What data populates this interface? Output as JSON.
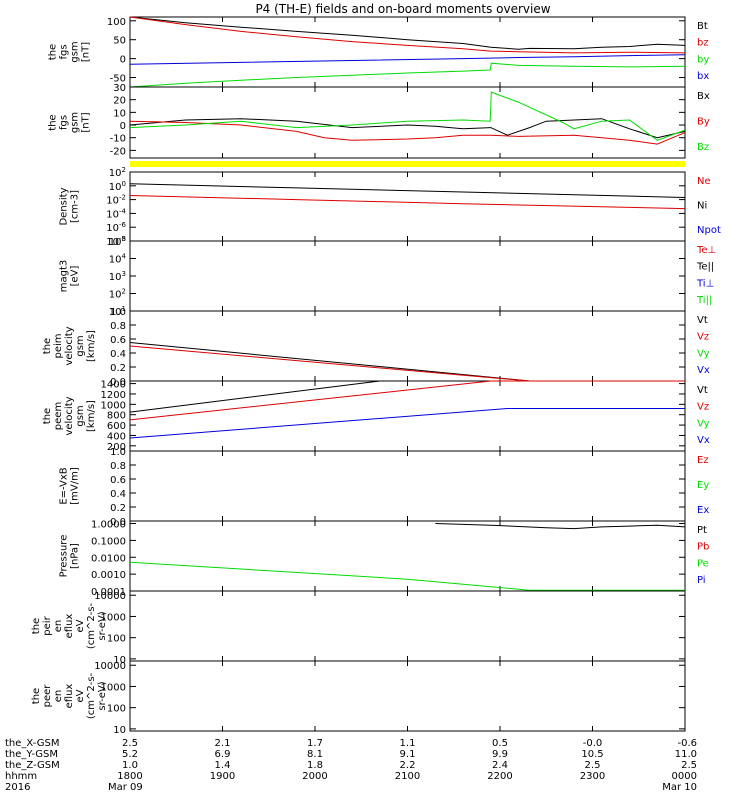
{
  "title": "P4 (TH-E) fields and on-board moments overview",
  "colors": {
    "black": "#000000",
    "red": "#dd0000",
    "green": "#00dd00",
    "blue": "#0000dd",
    "yellow": "#ffff00"
  },
  "chart_data": [
    {
      "type": "line",
      "id": "fgs-gsm",
      "ylabel": [
        "the",
        "fgs",
        "gsm",
        "[nT]"
      ],
      "ylim": [
        -75,
        110
      ],
      "yticks": [
        100,
        50,
        0,
        -50
      ],
      "legend": [
        {
          "label": "Bt",
          "color": "black"
        },
        {
          "label": "bz",
          "color": "red"
        },
        {
          "label": "by",
          "color": "green"
        },
        {
          "label": "bx",
          "color": "blue"
        }
      ],
      "series": [
        {
          "name": "Bt",
          "color": "black",
          "x": [
            0,
            0.1,
            0.2,
            0.3,
            0.4,
            0.5,
            0.6,
            0.65,
            0.7,
            0.72,
            0.8,
            0.85,
            0.9,
            0.95,
            1.0
          ],
          "y": [
            110,
            95,
            83,
            72,
            62,
            50,
            40,
            30,
            25,
            27,
            26,
            30,
            32,
            38,
            35
          ]
        },
        {
          "name": "bz",
          "color": "red",
          "x": [
            0,
            0.1,
            0.2,
            0.3,
            0.4,
            0.5,
            0.6,
            0.65,
            0.7,
            0.8,
            0.9,
            1.0
          ],
          "y": [
            110,
            90,
            72,
            58,
            45,
            35,
            26,
            20,
            18,
            15,
            17,
            15
          ]
        },
        {
          "name": "by",
          "color": "green",
          "x": [
            0,
            0.1,
            0.2,
            0.3,
            0.4,
            0.5,
            0.6,
            0.649,
            0.651,
            0.7,
            0.8,
            0.9,
            1.0
          ],
          "y": [
            -75,
            -65,
            -57,
            -50,
            -44,
            -38,
            -33,
            -30,
            -12,
            -18,
            -20,
            -22,
            -20
          ]
        },
        {
          "name": "bx",
          "color": "blue",
          "x": [
            0,
            0.2,
            0.4,
            0.6,
            0.7,
            0.8,
            0.9,
            1.0
          ],
          "y": [
            -15,
            -10,
            -5,
            0,
            3,
            5,
            8,
            10
          ]
        }
      ]
    },
    {
      "type": "line",
      "id": "fgs-gse-gsm",
      "ylabel": [
        "the",
        "fgs",
        "gsm",
        "[nT]"
      ],
      "ylim": [
        -26,
        30
      ],
      "yticks": [
        30,
        20,
        10,
        0,
        -10,
        -20
      ],
      "legend": [
        {
          "label": "Bx",
          "color": "black"
        },
        {
          "label": "By",
          "color": "red"
        },
        {
          "label": "Bz",
          "color": "green"
        }
      ],
      "series": [
        {
          "name": "Bx",
          "color": "black",
          "x": [
            0,
            0.1,
            0.2,
            0.3,
            0.4,
            0.5,
            0.55,
            0.6,
            0.65,
            0.68,
            0.72,
            0.75,
            0.8,
            0.85,
            0.9,
            0.95,
            1.0
          ],
          "y": [
            0,
            4,
            5,
            3,
            -2,
            0,
            -1,
            -3,
            -2,
            -8,
            -2,
            3,
            4,
            5,
            -3,
            -10,
            -5
          ]
        },
        {
          "name": "By",
          "color": "red",
          "x": [
            0,
            0.1,
            0.2,
            0.3,
            0.35,
            0.4,
            0.5,
            0.55,
            0.6,
            0.65,
            0.7,
            0.8,
            0.9,
            0.95,
            1.0
          ],
          "y": [
            3,
            2,
            0,
            -5,
            -10,
            -12,
            -11,
            -10,
            -8,
            -8,
            -9,
            -8,
            -12,
            -15,
            -6
          ]
        },
        {
          "name": "Bz",
          "color": "green",
          "x": [
            0,
            0.1,
            0.2,
            0.3,
            0.4,
            0.5,
            0.6,
            0.649,
            0.651,
            0.7,
            0.78,
            0.8,
            0.85,
            0.9,
            0.95,
            1.0
          ],
          "y": [
            -2,
            0,
            3,
            -2,
            0,
            3,
            4,
            3,
            26,
            18,
            2,
            -3,
            3,
            4,
            -12,
            -4
          ]
        }
      ]
    },
    {
      "type": "line",
      "id": "density",
      "log": true,
      "ylabel": [
        "Density",
        "[cm-3]"
      ],
      "ylim": [
        -8,
        2
      ],
      "yticks": [
        "10^2",
        "10^0",
        "10^-2",
        "10^-4",
        "10^-6",
        "10^-8"
      ],
      "legend": [
        {
          "label": "Ne",
          "color": "red"
        },
        {
          "label": "Ni",
          "color": "black"
        },
        {
          "label": "Npot",
          "color": "blue"
        }
      ],
      "series": [
        {
          "name": "Ni",
          "color": "black",
          "x": [
            0,
            0.3,
            0.6,
            1.0
          ],
          "y": [
            0.3,
            -0.3,
            -0.9,
            -1.7
          ]
        },
        {
          "name": "Ne",
          "color": "red",
          "x": [
            0,
            0.3,
            0.6,
            1.0
          ],
          "y": [
            -1.4,
            -2.0,
            -2.6,
            -3.3
          ]
        }
      ]
    },
    {
      "type": "line",
      "id": "temperature",
      "log": true,
      "ylabel": [
        "magt3",
        "[eV]"
      ],
      "ylim": [
        1,
        5
      ],
      "yticks": [
        "10^5",
        "10^4",
        "10^3",
        "10^2",
        "10^1"
      ],
      "legend": [
        {
          "label": "Te⊥",
          "color": "red"
        },
        {
          "label": "Te||",
          "color": "black"
        },
        {
          "label": "Ti⊥",
          "color": "blue"
        },
        {
          "label": "Ti||",
          "color": "green"
        }
      ],
      "series": []
    },
    {
      "type": "line",
      "id": "peim-velocity",
      "ylabel": [
        "the",
        "peim",
        "velocity",
        "gsm",
        "[km/s]"
      ],
      "ylim": [
        0,
        1.0
      ],
      "yticks": [
        1.0,
        0.8,
        0.6,
        0.4,
        0.2,
        0.0
      ],
      "legend": [
        {
          "label": "Vt",
          "color": "black"
        },
        {
          "label": "Vz",
          "color": "red"
        },
        {
          "label": "Vy",
          "color": "green"
        },
        {
          "label": "Vx",
          "color": "blue"
        }
      ],
      "series": [
        {
          "name": "Vt",
          "color": "black",
          "x": [
            0,
            0.72
          ],
          "y": [
            0.55,
            0.0
          ]
        },
        {
          "name": "Vz",
          "color": "red",
          "x": [
            0,
            0.72
          ],
          "y": [
            0.5,
            0.0
          ]
        }
      ]
    },
    {
      "type": "line",
      "id": "peem-velocity",
      "ylabel": [
        "the",
        "peem",
        "velocity",
        "gsm",
        "[km/s]"
      ],
      "ylim": [
        100,
        1450
      ],
      "yticks": [
        1400,
        1200,
        1000,
        800,
        600,
        400,
        200
      ],
      "legend": [
        {
          "label": "Vt",
          "color": "black"
        },
        {
          "label": "Vz",
          "color": "red"
        },
        {
          "label": "Vy",
          "color": "green"
        },
        {
          "label": "Vx",
          "color": "blue"
        }
      ],
      "series": [
        {
          "name": "Vt",
          "color": "black",
          "x": [
            0,
            0.45,
            0.8,
            1.0
          ],
          "y": [
            850,
            1450,
            1450,
            1450
          ]
        },
        {
          "name": "Vz",
          "color": "red",
          "x": [
            0,
            0.65,
            1.0
          ],
          "y": [
            700,
            1450,
            1450
          ]
        },
        {
          "name": "Vx",
          "color": "blue",
          "x": [
            0,
            0.68,
            1.0
          ],
          "y": [
            350,
            920,
            920
          ]
        }
      ]
    },
    {
      "type": "line",
      "id": "efield",
      "ylabel": [
        "E=-VxB",
        "[mV/m]"
      ],
      "ylim": [
        0,
        1.0
      ],
      "yticks": [
        1.0,
        0.8,
        0.6,
        0.4,
        0.2,
        0.0
      ],
      "legend": [
        {
          "label": "Ez",
          "color": "red"
        },
        {
          "label": "Ey",
          "color": "green"
        },
        {
          "label": "Ex",
          "color": "blue"
        }
      ],
      "series": []
    },
    {
      "type": "line",
      "id": "pressure",
      "log": true,
      "ylabel": [
        "Pressure",
        "[nPa]"
      ],
      "ylim": [
        -4,
        0.15
      ],
      "yticks": [
        "1.0000",
        "0.1000",
        "0.0100",
        "0.0010",
        "0.0001"
      ],
      "legend": [
        {
          "label": "Pt",
          "color": "black"
        },
        {
          "label": "Pb",
          "color": "red"
        },
        {
          "label": "Pe",
          "color": "green"
        },
        {
          "label": "Pi",
          "color": "blue"
        }
      ],
      "series": [
        {
          "name": "Pt",
          "color": "black",
          "x": [
            0.55,
            0.65,
            0.75,
            0.8,
            0.85,
            0.9,
            0.95,
            1.0
          ],
          "y": [
            0,
            -0.1,
            -0.25,
            -0.3,
            -0.2,
            -0.15,
            -0.1,
            -0.2
          ]
        },
        {
          "name": "Pe",
          "color": "green",
          "x": [
            0,
            0.5,
            0.72,
            1.0
          ],
          "y": [
            -2.3,
            -3.3,
            -3.95,
            -3.95
          ]
        }
      ]
    },
    {
      "type": "line",
      "id": "peir-en-eflux",
      "log": true,
      "ylabel": [
        "the",
        "peir",
        "en",
        "eflux",
        "eV",
        "(cm^2-s-",
        "sr-eV)"
      ],
      "ylim": [
        0.9,
        4.2
      ],
      "yticks": [
        "10000",
        "1000",
        "100",
        "10"
      ],
      "legend": [],
      "series": []
    },
    {
      "type": "line",
      "id": "peer-en-eflux",
      "log": true,
      "ylabel": [
        "the",
        "peer",
        "en",
        "eflux",
        "eV",
        "(cm^2-s-",
        "sr-eV)"
      ],
      "ylim": [
        0.9,
        4.2
      ],
      "yticks": [
        "10000",
        "1000",
        "100",
        "10"
      ],
      "legend": [],
      "series": []
    }
  ],
  "ephemeris": {
    "row_labels": [
      "the_X-GSM",
      "the_Y-GSM",
      "the_Z-GSM",
      "hhmm",
      "2016"
    ],
    "columns": [
      [
        "2.5",
        "5.2",
        "1.0",
        "1800",
        "Mar 09"
      ],
      [
        "2.1",
        "6.9",
        "1.4",
        "1900",
        ""
      ],
      [
        "1.7",
        "8.1",
        "1.8",
        "2000",
        ""
      ],
      [
        "1.1",
        "9.1",
        "2.2",
        "2100",
        ""
      ],
      [
        "0.5",
        "9.9",
        "2.4",
        "2200",
        ""
      ],
      [
        "-0.0",
        "10.5",
        "2.5",
        "2300",
        ""
      ],
      [
        "-0.6",
        "11.0",
        "2.5",
        "0000",
        "Mar 10"
      ]
    ]
  }
}
